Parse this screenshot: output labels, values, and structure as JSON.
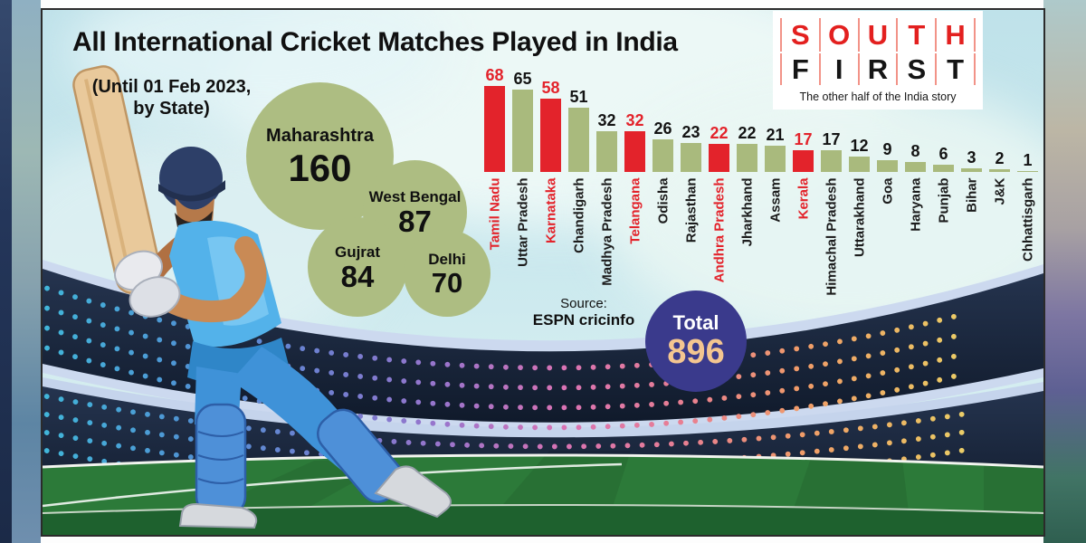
{
  "title": "All International Cricket Matches Played in India",
  "subtitle_lines": [
    "(Until 01 Feb 2023,",
    "by State)"
  ],
  "logo": {
    "row1": [
      "S",
      "O",
      "U",
      "T",
      "H"
    ],
    "row2": [
      "F",
      "I",
      "R",
      "S",
      "T"
    ],
    "tagline": "The other half of the India story",
    "row1_color": "#e3201f",
    "row2_color": "#151515"
  },
  "source_label": "Source:",
  "total_label": "Total",
  "chart_data": {
    "type": "bar",
    "title": "All International Cricket Matches Played in India",
    "subtitle": "(Until 01 Feb 2023, by State)",
    "source": "ESPN cricinfo",
    "total": 896,
    "bubbles": [
      {
        "state": "Maharashtra",
        "matches": 160
      },
      {
        "state": "West Bengal",
        "matches": 87
      },
      {
        "state": "Gujrat",
        "matches": 84
      },
      {
        "state": "Delhi",
        "matches": 70
      }
    ],
    "categories": [
      "Tamil Nadu",
      "Uttar Pradesh",
      "Karnataka",
      "Chandigarh",
      "Madhya Pradesh",
      "Telangana",
      "Odisha",
      "Rajasthan",
      "Andhra Pradesh",
      "Jharkhand",
      "Assam",
      "Kerala",
      "Himachal Pradesh",
      "Uttarakhand",
      "Goa",
      "Haryana",
      "Punjab",
      "Bihar",
      "J&K",
      "Chhattisgarh"
    ],
    "values": [
      68,
      65,
      58,
      51,
      32,
      32,
      26,
      23,
      22,
      22,
      21,
      17,
      17,
      12,
      9,
      8,
      6,
      3,
      2,
      1
    ],
    "highlight": [
      true,
      false,
      true,
      false,
      false,
      true,
      false,
      false,
      true,
      false,
      false,
      true,
      false,
      false,
      false,
      false,
      false,
      false,
      false,
      false
    ],
    "bar_color": "#a9ba7d",
    "highlight_color": "#e3232b",
    "value_label_color": "#141414",
    "ylim": [
      0,
      70
    ],
    "grid": false,
    "legend": false
  }
}
